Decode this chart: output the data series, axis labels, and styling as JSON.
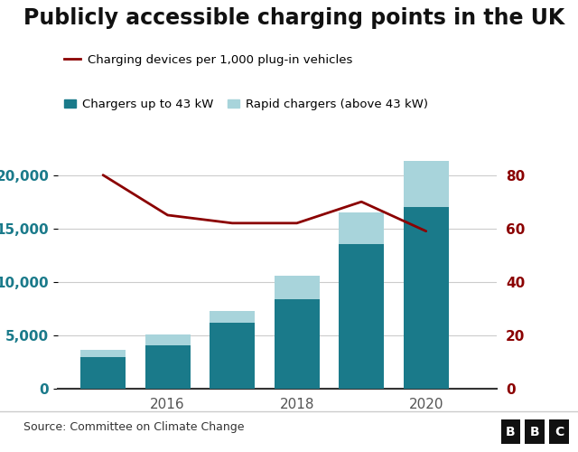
{
  "title": "Publicly accessible charging points in the UK",
  "years": [
    2015,
    2016,
    2017,
    2018,
    2019,
    2020
  ],
  "slow_chargers": [
    3000,
    4100,
    6200,
    8400,
    13500,
    17000
  ],
  "rapid_chargers": [
    600,
    1000,
    1100,
    2200,
    3000,
    4300
  ],
  "line_values": [
    80,
    65,
    62,
    62,
    70,
    59
  ],
  "slow_color": "#1a7a8a",
  "rapid_color": "#a8d4db",
  "line_color": "#8b0000",
  "left_ylim": [
    0,
    22000
  ],
  "right_ylim": [
    0,
    88
  ],
  "left_yticks": [
    0,
    5000,
    10000,
    15000,
    20000
  ],
  "right_yticks": [
    0,
    20,
    40,
    60,
    80
  ],
  "left_ytick_labels": [
    "0",
    "5,000",
    "10,000",
    "15,000",
    "20,000"
  ],
  "right_ytick_labels": [
    "0",
    "20",
    "40",
    "60",
    "80"
  ],
  "source_text": "Source: Committee on Climate Change",
  "legend_line_label": "Charging devices per 1,000 plug-in vehicles",
  "legend_slow_label": "Chargers up to 43 kW",
  "legend_rapid_label": "Rapid chargers (above 43 kW)",
  "bar_width": 0.7,
  "title_fontsize": 17,
  "axis_label_fontsize": 11,
  "tick_color_left": "#1a7a8a",
  "tick_color_right": "#8b0000",
  "background_color": "#ffffff",
  "grid_color": "#cccccc",
  "bottom_spine_color": "#333333",
  "xtick_labels": [
    "2016",
    "2018",
    "2020"
  ],
  "xticks": [
    2016,
    2018,
    2020
  ],
  "xlim": [
    2014.3,
    2021.1
  ],
  "bbc_bg": "#111111",
  "bbc_text": "#ffffff",
  "footer_line_color": "#cccccc"
}
